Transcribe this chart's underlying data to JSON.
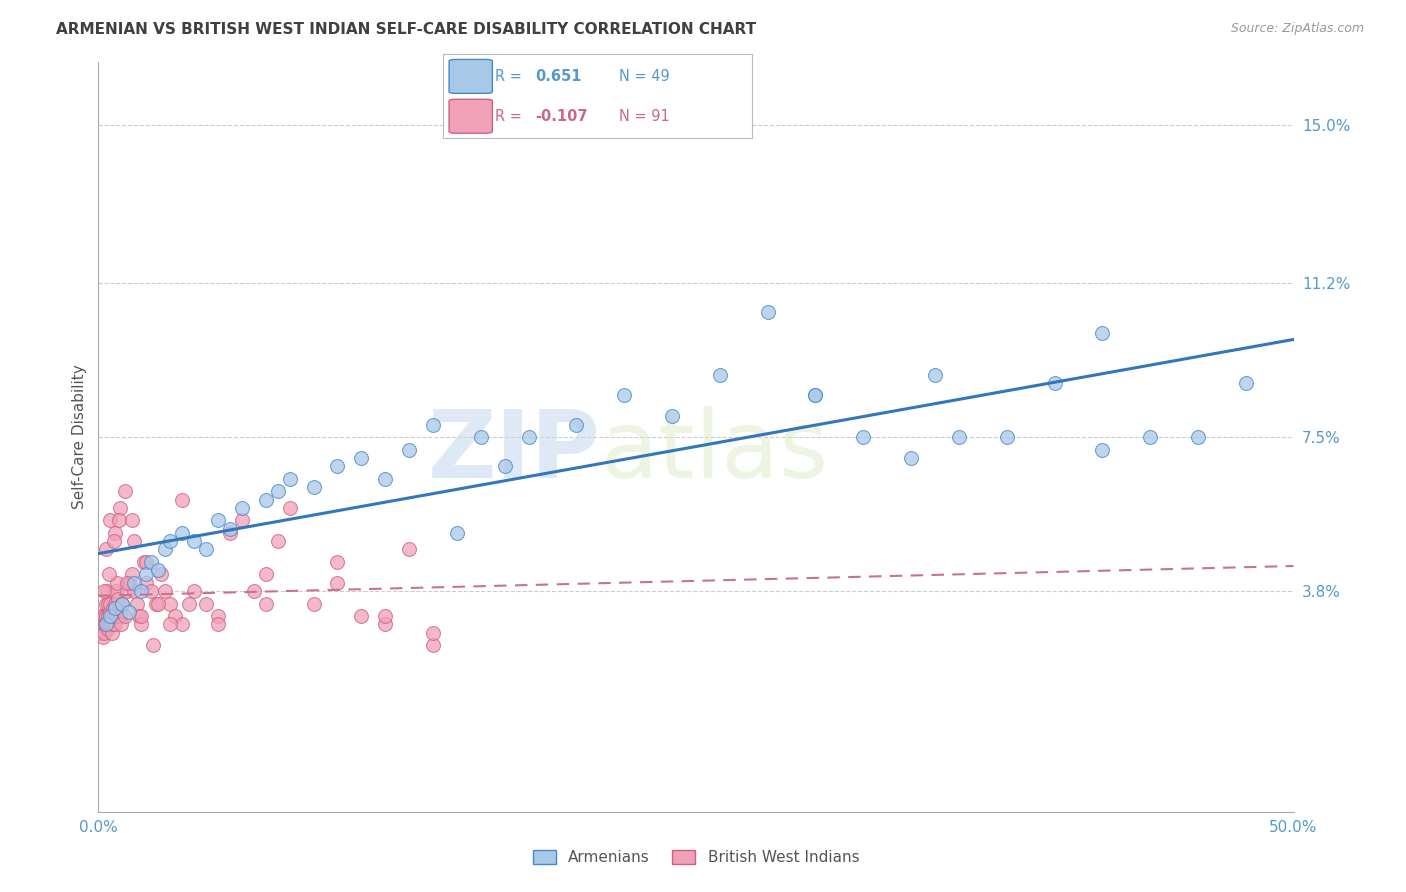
{
  "title": "ARMENIAN VS BRITISH WEST INDIAN SELF-CARE DISABILITY CORRELATION CHART",
  "source": "Source: ZipAtlas.com",
  "ylabel": "Self-Care Disability",
  "xlim": [
    0,
    50
  ],
  "ylim": [
    -1.5,
    16.5
  ],
  "ytick_vals": [
    0.0,
    3.8,
    7.5,
    11.2,
    15.0
  ],
  "ytick_labels": [
    "",
    "3.8%",
    "7.5%",
    "11.2%",
    "15.0%"
  ],
  "xtick_vals": [
    0,
    12.5,
    25.0,
    37.5,
    50.0
  ],
  "xtick_labels": [
    "0.0%",
    "",
    "",
    "",
    "50.0%"
  ],
  "armenian_R": 0.651,
  "armenian_N": 49,
  "bwi_R": -0.107,
  "bwi_N": 91,
  "legend_label_armenian": "Armenians",
  "legend_label_bwi": "British West Indians",
  "blue_fill": "#a8c8e8",
  "blue_edge": "#4488cc",
  "blue_line": "#3377bb",
  "pink_fill": "#f0a0b8",
  "pink_edge": "#d06080",
  "pink_line": "#cc7090",
  "background_color": "#ffffff",
  "grid_color": "#cccccc",
  "title_color": "#404040",
  "axis_color": "#5599cc",
  "watermark_color": "#d0dff0",
  "armenian_x": [
    0.3,
    0.5,
    0.7,
    1.0,
    1.3,
    1.5,
    1.8,
    2.0,
    2.2,
    2.5,
    2.8,
    3.0,
    3.5,
    4.0,
    4.5,
    5.0,
    5.5,
    6.0,
    7.0,
    7.5,
    8.0,
    9.0,
    10.0,
    11.0,
    12.0,
    13.0,
    14.0,
    15.0,
    16.0,
    17.0,
    18.0,
    20.0,
    22.0,
    24.0,
    26.0,
    28.0,
    30.0,
    32.0,
    34.0,
    36.0,
    38.0,
    40.0,
    42.0,
    44.0,
    46.0,
    48.0,
    30.0,
    35.0,
    42.0
  ],
  "armenian_y": [
    3.0,
    3.2,
    3.4,
    3.5,
    3.3,
    4.0,
    3.8,
    4.2,
    4.5,
    4.3,
    4.8,
    5.0,
    5.2,
    5.0,
    4.8,
    5.5,
    5.3,
    5.8,
    6.0,
    6.2,
    6.5,
    6.3,
    6.8,
    7.0,
    6.5,
    7.2,
    7.8,
    5.2,
    7.5,
    6.8,
    7.5,
    7.8,
    8.5,
    8.0,
    9.0,
    10.5,
    8.5,
    7.5,
    7.0,
    7.5,
    7.5,
    8.8,
    7.2,
    7.5,
    7.5,
    8.8,
    8.5,
    9.0,
    10.0
  ],
  "bwi_x": [
    0.05,
    0.08,
    0.1,
    0.12,
    0.15,
    0.18,
    0.2,
    0.22,
    0.25,
    0.28,
    0.3,
    0.33,
    0.35,
    0.38,
    0.4,
    0.42,
    0.45,
    0.48,
    0.5,
    0.52,
    0.55,
    0.58,
    0.6,
    0.63,
    0.65,
    0.68,
    0.7,
    0.72,
    0.75,
    0.78,
    0.8,
    0.85,
    0.9,
    0.95,
    1.0,
    1.1,
    1.2,
    1.3,
    1.4,
    1.5,
    1.6,
    1.7,
    1.8,
    1.9,
    2.0,
    2.2,
    2.4,
    2.6,
    2.8,
    3.0,
    3.2,
    3.5,
    3.8,
    4.0,
    4.5,
    5.0,
    5.5,
    6.0,
    6.5,
    7.0,
    7.5,
    8.0,
    9.0,
    10.0,
    11.0,
    12.0,
    13.0,
    14.0,
    0.3,
    0.5,
    0.7,
    0.9,
    1.2,
    1.5,
    2.0,
    2.5,
    3.5,
    5.0,
    7.0,
    10.0,
    12.0,
    14.0,
    0.25,
    0.45,
    0.65,
    0.85,
    1.1,
    1.4,
    1.8,
    2.3,
    3.0
  ],
  "bwi_y": [
    2.8,
    3.0,
    3.2,
    2.9,
    3.1,
    2.7,
    3.0,
    2.8,
    3.2,
    3.0,
    3.5,
    3.2,
    3.8,
    3.5,
    3.2,
    2.9,
    3.0,
    3.3,
    3.5,
    3.0,
    2.8,
    3.2,
    3.0,
    3.4,
    3.2,
    3.0,
    3.5,
    3.2,
    3.8,
    4.0,
    3.6,
    3.4,
    3.2,
    3.0,
    3.5,
    3.2,
    3.8,
    4.0,
    4.2,
    3.8,
    3.5,
    3.2,
    3.0,
    4.5,
    4.0,
    3.8,
    3.5,
    4.2,
    3.8,
    3.5,
    3.2,
    3.0,
    3.5,
    3.8,
    3.5,
    3.2,
    5.2,
    5.5,
    3.8,
    4.2,
    5.0,
    5.8,
    3.5,
    4.5,
    3.2,
    3.0,
    4.8,
    2.5,
    4.8,
    5.5,
    5.2,
    5.8,
    4.0,
    5.0,
    4.5,
    3.5,
    6.0,
    3.0,
    3.5,
    4.0,
    3.2,
    2.8,
    3.8,
    4.2,
    5.0,
    5.5,
    6.2,
    5.5,
    3.2,
    2.5,
    3.0
  ]
}
